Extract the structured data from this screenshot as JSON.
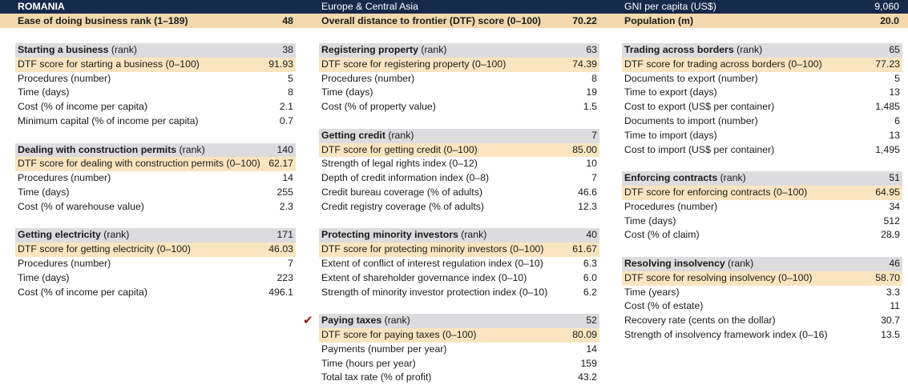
{
  "header": {
    "country": "ROMANIA",
    "region": "Europe & Central Asia",
    "gni_label": "GNI per capita (US$)",
    "gni_value": "9,060",
    "ease_label": "Ease of doing business rank (1–189)",
    "ease_value": "48",
    "dtf_label": "Overall distance to frontier (DTF) score (0–100)",
    "dtf_value": "70.22",
    "pop_label": "Population (m)",
    "pop_value": "20.0"
  },
  "columns": [
    {
      "sections": [
        {
          "name": "Starting a business",
          "suffix": " (rank)",
          "rank": "38",
          "rows": [
            {
              "label": "DTF score for starting a business (0–100)",
              "value": "91.93"
            },
            {
              "label": "Procedures (number)",
              "value": "5"
            },
            {
              "label": "Time (days)",
              "value": "8"
            },
            {
              "label": "Cost (% of income per capita)",
              "value": "2.1"
            },
            {
              "label": "Minimum capital (% of income per capita)",
              "value": "0.7"
            }
          ]
        },
        {
          "name": "Dealing with construction permits",
          "suffix": " (rank)",
          "rank": "140",
          "rows": [
            {
              "label": "DTF score for dealing with construction permits (0–100)",
              "value": "62.17"
            },
            {
              "label": "Procedures (number)",
              "value": "14"
            },
            {
              "label": "Time (days)",
              "value": "255"
            },
            {
              "label": "Cost (% of warehouse value)",
              "value": "2.3"
            }
          ]
        },
        {
          "name": "Getting electricity",
          "suffix": " (rank)",
          "rank": "171",
          "rows": [
            {
              "label": "DTF score for getting electricity (0–100)",
              "value": "46.03"
            },
            {
              "label": "Procedures (number)",
              "value": "7"
            },
            {
              "label": "Time (days)",
              "value": "223"
            },
            {
              "label": "Cost (% of income per capita)",
              "value": "496.1"
            }
          ]
        }
      ]
    },
    {
      "sections": [
        {
          "name": "Registering property",
          "suffix": " (rank)",
          "rank": "63",
          "rows": [
            {
              "label": "DTF score for registering property (0–100)",
              "value": "74.39"
            },
            {
              "label": "Procedures (number)",
              "value": "8"
            },
            {
              "label": "Time (days)",
              "value": "19"
            },
            {
              "label": "Cost (% of property value)",
              "value": "1.5"
            }
          ]
        },
        {
          "name": "Getting credit",
          "suffix": " (rank)",
          "rank": "7",
          "rows": [
            {
              "label": "DTF score for getting credit (0–100)",
              "value": "85.00"
            },
            {
              "label": "Strength of legal rights index (0–12)",
              "value": "10"
            },
            {
              "label": "Depth of credit information index (0–8)",
              "value": "7"
            },
            {
              "label": "Credit bureau coverage (% of adults)",
              "value": "46.6"
            },
            {
              "label": "Credit registry coverage (% of adults)",
              "value": "12.3"
            }
          ]
        },
        {
          "name": "Protecting minority investors",
          "suffix": " (rank)",
          "rank": "40",
          "rows": [
            {
              "label": "DTF score for protecting minority investors (0–100)",
              "value": "61.67"
            },
            {
              "label": "Extent of conflict of interest regulation index (0–10)",
              "value": "6.3"
            },
            {
              "label": "Extent of shareholder governance index (0–10)",
              "value": "6.0"
            },
            {
              "label": "Strength of minority investor protection index (0–10)",
              "value": "6.2"
            }
          ]
        },
        {
          "name": "Paying taxes",
          "suffix": " (rank)",
          "rank": "52",
          "check": "✔",
          "rows": [
            {
              "label": "DTF score for paying taxes (0–100)",
              "value": "80.09"
            },
            {
              "label": "Payments (number per year)",
              "value": "14"
            },
            {
              "label": "Time (hours per year)",
              "value": "159"
            },
            {
              "label": "Total tax rate (% of profit)",
              "value": "43.2"
            }
          ]
        }
      ]
    },
    {
      "sections": [
        {
          "name": "Trading across borders",
          "suffix": " (rank)",
          "rank": "65",
          "rows": [
            {
              "label": "DTF score for trading across borders (0–100)",
              "value": "77.23"
            },
            {
              "label": "Documents to export (number)",
              "value": "5"
            },
            {
              "label": "Time to export (days)",
              "value": "13"
            },
            {
              "label": "Cost to export (US$ per container)",
              "value": "1,485"
            },
            {
              "label": "Documents to import (number)",
              "value": "6"
            },
            {
              "label": "Time to import (days)",
              "value": "13"
            },
            {
              "label": "Cost to import (US$ per container)",
              "value": "1,495"
            }
          ]
        },
        {
          "name": "Enforcing contracts",
          "suffix": " (rank)",
          "rank": "51",
          "rows": [
            {
              "label": "DTF score for enforcing contracts (0–100)",
              "value": "64.95"
            },
            {
              "label": "Procedures (number)",
              "value": "34"
            },
            {
              "label": "Time (days)",
              "value": "512"
            },
            {
              "label": "Cost (% of claim)",
              "value": "28.9"
            }
          ]
        },
        {
          "name": "Resolving insolvency",
          "suffix": " (rank)",
          "rank": "46",
          "rows": [
            {
              "label": "DTF score for resolving insolvency (0–100)",
              "value": "58.70"
            },
            {
              "label": "Time (years)",
              "value": "3.3"
            },
            {
              "label": "Cost (% of estate)",
              "value": "11"
            },
            {
              "label": "Recovery rate (cents on the dollar)",
              "value": "30.7"
            },
            {
              "label": "Strength of insolvency framework index (0–16)",
              "value": "13.5"
            }
          ]
        }
      ]
    }
  ]
}
